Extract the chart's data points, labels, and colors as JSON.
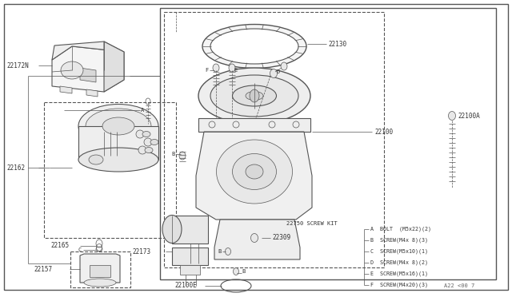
{
  "bg_color": "#ffffff",
  "lc": "#555555",
  "fig_width": 6.4,
  "fig_height": 3.72,
  "dpi": 100,
  "footer_text": "A22 <00 7",
  "screw_kit_lines": [
    "A  BOLT  (M5x22)(2)",
    "B  SCREW(M4x 8)(3)",
    "C  SCREW(M5x10)(1)",
    "D  SCREW(M4x 8)(2)",
    "E  SCREW(M5x16)(1)",
    "F  SCREW(M4x20)(3)"
  ]
}
